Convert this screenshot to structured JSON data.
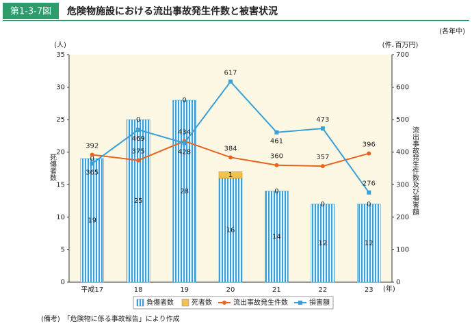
{
  "figure_label": "第1-3-7図",
  "title": "危険物施設における流出事故発生件数と被害状況",
  "period": "(各年中)",
  "note": "(備考)　「危険物に係る事故報告」により作成",
  "chart_data": {
    "type": "bar",
    "categories": [
      "平成17",
      "18",
      "19",
      "20",
      "21",
      "22",
      "23"
    ],
    "x_unit": "(年)",
    "y_unit": "(人)",
    "y_label": "死傷者数",
    "y2_unit": "(件､百万円)",
    "y2_label": "流出事故発生件数及び損害額",
    "ylim": [
      0,
      35
    ],
    "yticks": [
      0,
      5,
      10,
      15,
      20,
      25,
      30,
      35
    ],
    "y2lim": [
      0,
      700
    ],
    "y2ticks": [
      0,
      100,
      200,
      300,
      400,
      500,
      600,
      700
    ],
    "series": [
      {
        "name": "負傷者数",
        "color": "#3a9fd8",
        "type": "bar",
        "values": [
          19,
          25,
          28,
          16,
          14,
          12,
          12
        ]
      },
      {
        "name": "死者数",
        "color": "#f2c14e",
        "type": "bar",
        "values": [
          0,
          0,
          0,
          1,
          0,
          0,
          0
        ]
      },
      {
        "name": "流出事故発生件数",
        "color": "#e8641e",
        "type": "line",
        "axis": "y2",
        "values": [
          392,
          375,
          434,
          384,
          360,
          357,
          396
        ]
      },
      {
        "name": "損害額",
        "color": "#3a9fd8",
        "type": "line",
        "axis": "y2",
        "values": [
          365,
          469,
          428,
          617,
          461,
          473,
          276
        ]
      }
    ]
  }
}
